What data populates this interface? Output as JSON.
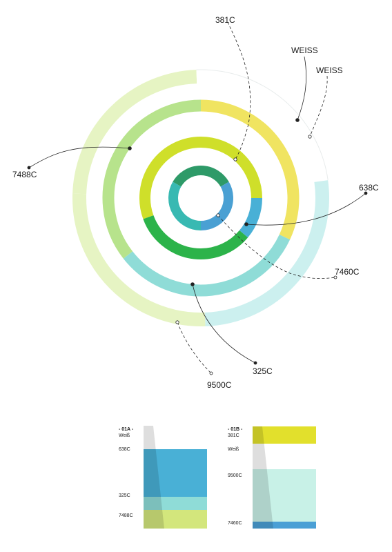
{
  "colors": {
    "weiss": "#ffffff",
    "c381": "#e2e02c",
    "c7488": "#d3e67c",
    "c638": "#49b0d6",
    "c325": "#8fdcd7",
    "c9500": "#c8f1e7",
    "c7460": "#4a9fd5",
    "lightgreen": "#b7e38c",
    "palegreen": "#e6f4c3",
    "paleteal": "#ccf0ef",
    "yellow": "#f0e461",
    "limegreen": "#cfdf2a",
    "green": "#2cb34a",
    "darkgreen": "#2e9a68",
    "teal": "#38b9b2",
    "blue": "#4aa0d3",
    "line": "#222222"
  },
  "rings": [
    {
      "name": "outer-ring",
      "segments": [
        {
          "from": 272,
          "to": 358,
          "color": "palegreen"
        },
        {
          "from": 358,
          "to": 82,
          "color": "weiss"
        },
        {
          "from": 82,
          "to": 178,
          "color": "paleteal"
        },
        {
          "from": 178,
          "to": 272,
          "color": "palegreen"
        }
      ]
    },
    {
      "name": "second-ring",
      "segments": [
        {
          "from": 0,
          "to": 115,
          "color": "yellow"
        },
        {
          "from": 115,
          "to": 232,
          "color": "c325"
        },
        {
          "from": 232,
          "to": 360,
          "color": "lightgreen"
        }
      ]
    },
    {
      "name": "third-ring",
      "segments": [
        {
          "from": 0,
          "to": 90,
          "color": "limegreen"
        },
        {
          "from": 90,
          "to": 130,
          "color": "c638"
        },
        {
          "from": 130,
          "to": 180,
          "color": "green"
        },
        {
          "from": 180,
          "to": 250,
          "color": "green"
        },
        {
          "from": 250,
          "to": 360,
          "color": "limegreen"
        }
      ]
    },
    {
      "name": "inner-ring",
      "segments": [
        {
          "from": 300,
          "to": 60,
          "color": "darkgreen"
        },
        {
          "from": 60,
          "to": 180,
          "color": "blue"
        },
        {
          "from": 180,
          "to": 300,
          "color": "teal"
        }
      ]
    }
  ],
  "callouts": [
    {
      "id": "381c",
      "label": "381C",
      "dashed": true
    },
    {
      "id": "weiss-1",
      "label": "WEISS",
      "dashed": false
    },
    {
      "id": "weiss-2",
      "label": "WEISS",
      "dashed": true
    },
    {
      "id": "7488c",
      "label": "7488C",
      "dashed": false
    },
    {
      "id": "638c",
      "label": "638C",
      "dashed": false
    },
    {
      "id": "7460c",
      "label": "7460C",
      "dashed": true
    },
    {
      "id": "325c",
      "label": "325C",
      "dashed": false
    },
    {
      "id": "9500c",
      "label": "9500C",
      "dashed": true
    }
  ],
  "swatches": [
    {
      "id": "01a",
      "code": "- 01A -",
      "first_label": "Weiß",
      "labels": [
        {
          "text": "638C"
        },
        {
          "text": "325C"
        },
        {
          "text": "7488C"
        }
      ],
      "bands": [
        {
          "color": "weiss",
          "share": 0.23
        },
        {
          "color": "c638",
          "share": 0.46
        },
        {
          "color": "c325",
          "share": 0.13
        },
        {
          "color": "c7488",
          "share": 0.18
        }
      ]
    },
    {
      "id": "01b",
      "code": "- 01B -",
      "first_label": "381C",
      "labels": [
        {
          "text": "Weiß"
        },
        {
          "text": "9500C"
        },
        {
          "text": "7460C"
        }
      ],
      "bands": [
        {
          "color": "c381",
          "share": 0.17
        },
        {
          "color": "weiss",
          "share": 0.25
        },
        {
          "color": "c9500",
          "share": 0.51
        },
        {
          "color": "c7460",
          "share": 0.07
        }
      ]
    }
  ]
}
